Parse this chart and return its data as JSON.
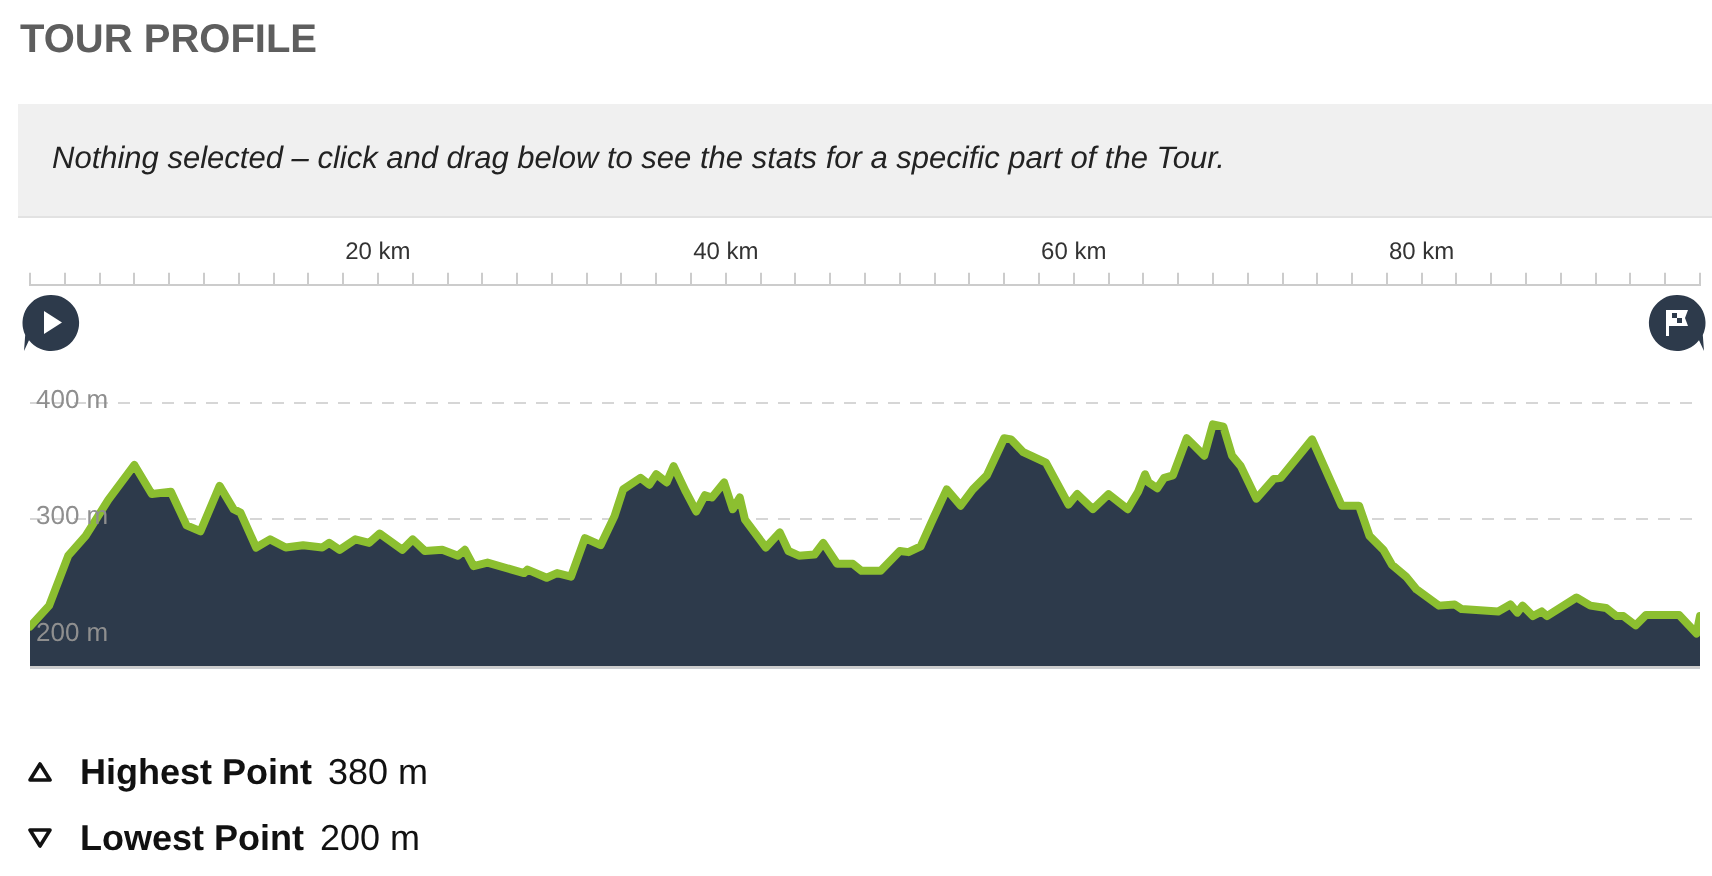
{
  "chart_data": {
    "type": "area",
    "title": "TOUR PROFILE",
    "subtitle": "Nothing selected – click and drag below to see the stats for a specific part of the Tour.",
    "x": [
      0,
      1.1,
      2.2,
      3.2,
      4.5,
      6.0,
      7.0,
      8.1,
      9.0,
      9.8,
      10.9,
      11.7,
      12.1,
      13.0,
      13.8,
      14.7,
      15.7,
      16.8,
      17.2,
      17.8,
      18.7,
      19.5,
      20.1,
      21.4,
      22.0,
      22.7,
      23.7,
      24.6,
      25.0,
      25.5,
      26.3,
      28.4,
      28.6,
      29.7,
      30.3,
      31.1,
      31.9,
      32.8,
      33.6,
      34.1,
      35.1,
      35.6,
      36.0,
      36.6,
      37.0,
      37.7,
      38.3,
      38.8,
      39.2,
      39.9,
      40.4,
      40.8,
      41.1,
      42.3,
      43.1,
      43.6,
      44.2,
      45.1,
      45.6,
      46.4,
      47.3,
      47.8,
      48.9,
      50.0,
      50.5,
      51.2,
      51.8,
      52.7,
      53.5,
      54.2,
      55.0,
      56.0,
      56.4,
      57.1,
      58.4,
      59.7,
      60.2,
      61.1,
      62.0,
      63.1,
      63.7,
      64.1,
      64.3,
      64.8,
      65.2,
      65.7,
      66.5,
      67.5,
      68.0,
      68.6,
      69.1,
      69.6,
      70.5,
      71.5,
      71.9,
      73.7,
      75.4,
      76.4,
      77.0,
      77.8,
      78.3,
      79.1,
      79.7,
      81.0,
      81.9,
      82.3,
      84.4,
      85.1,
      85.5,
      85.8,
      86.4,
      86.9,
      87.2,
      88.9,
      89.7,
      90.6,
      91.2,
      91.6,
      92.3,
      92.9,
      94.8,
      95.8,
      96
    ],
    "series": [
      {
        "type": "area",
        "color": "#2d3a4b",
        "values": [
          206,
          224,
          267,
          284,
          315,
          345,
          320,
          322,
          293,
          288,
          327,
          307,
          304,
          274,
          281,
          274,
          276,
          274,
          278,
          272,
          281,
          278,
          286,
          272,
          281,
          271,
          272,
          267,
          272,
          258,
          261,
          252,
          255,
          248,
          252,
          249,
          282,
          276,
          301,
          324,
          334,
          328,
          337,
          330,
          344,
          322,
          305,
          319,
          317,
          330,
          307,
          317,
          298,
          274,
          287,
          271,
          267,
          268,
          278,
          260,
          260,
          254,
          254,
          271,
          270,
          275,
          295,
          324,
          310,
          324,
          336,
          368,
          367,
          356,
          347,
          311,
          320,
          307,
          320,
          307,
          322,
          337,
          330,
          325,
          334,
          336,
          368,
          353,
          380,
          378,
          353,
          344,
          316,
          333,
          334,
          367,
          310,
          310,
          284,
          272,
          259,
          249,
          238,
          224,
          225,
          221,
          219,
          225,
          218,
          224,
          215,
          219,
          215,
          231,
          224,
          222,
          215,
          215,
          207,
          216,
          216,
          200,
          215
        ]
      }
    ],
    "xlim": [
      0,
      96
    ],
    "xticks": [
      {
        "value": 0,
        "label": null
      },
      {
        "value": 2,
        "label": null
      },
      {
        "value": 4,
        "label": null
      },
      {
        "value": 6,
        "label": null
      },
      {
        "value": 8,
        "label": null
      },
      {
        "value": 10,
        "label": null
      },
      {
        "value": 12,
        "label": null
      },
      {
        "value": 14,
        "label": null
      },
      {
        "value": 16,
        "label": null
      },
      {
        "value": 18,
        "label": null
      },
      {
        "value": 20,
        "label": "20 km"
      },
      {
        "value": 22,
        "label": null
      },
      {
        "value": 24,
        "label": null
      },
      {
        "value": 26,
        "label": null
      },
      {
        "value": 28,
        "label": null
      },
      {
        "value": 30,
        "label": null
      },
      {
        "value": 32,
        "label": null
      },
      {
        "value": 34,
        "label": null
      },
      {
        "value": 36,
        "label": null
      },
      {
        "value": 38,
        "label": null
      },
      {
        "value": 40,
        "label": "40 km"
      },
      {
        "value": 42,
        "label": null
      },
      {
        "value": 44,
        "label": null
      },
      {
        "value": 46,
        "label": null
      },
      {
        "value": 48,
        "label": null
      },
      {
        "value": 50,
        "label": null
      },
      {
        "value": 52,
        "label": null
      },
      {
        "value": 54,
        "label": null
      },
      {
        "value": 56,
        "label": null
      },
      {
        "value": 58,
        "label": null
      },
      {
        "value": 60,
        "label": "60 km"
      },
      {
        "value": 62,
        "label": null
      },
      {
        "value": 64,
        "label": null
      },
      {
        "value": 66,
        "label": null
      },
      {
        "value": 68,
        "label": null
      },
      {
        "value": 70,
        "label": null
      },
      {
        "value": 72,
        "label": null
      },
      {
        "value": 74,
        "label": null
      },
      {
        "value": 76,
        "label": null
      },
      {
        "value": 78,
        "label": null
      },
      {
        "value": 80,
        "label": "80 km"
      },
      {
        "value": 82,
        "label": null
      },
      {
        "value": 84,
        "label": null
      },
      {
        "value": 86,
        "label": null
      },
      {
        "value": 88,
        "label": null
      },
      {
        "value": 90,
        "label": null
      },
      {
        "value": 92,
        "label": null
      },
      {
        "value": 94,
        "label": null
      },
      {
        "value": 96,
        "label": null
      }
    ],
    "ylim": [
      170,
      500
    ],
    "yticks": [
      {
        "value": 200,
        "label": "200 m"
      },
      {
        "value": 300,
        "label": "300 m"
      },
      {
        "value": 400,
        "label": "400 m"
      }
    ],
    "grid": "y",
    "annotations": [
      "Highest Point",
      "380 m",
      "Lowest Point",
      "200 m"
    ]
  }
}
